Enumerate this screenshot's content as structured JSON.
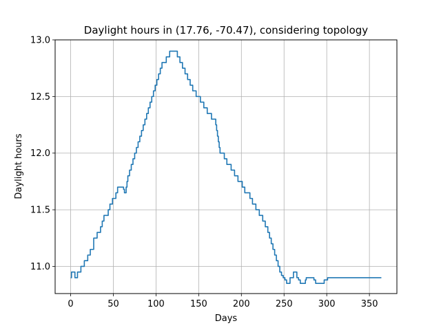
{
  "chart_data": {
    "type": "line",
    "title": "Daylight hours in (17.76, -70.47), considering topology",
    "xlabel": "Days",
    "ylabel": "Daylight hours",
    "xlim": [
      -18.2,
      382.2
    ],
    "ylim": [
      10.76,
      13.0
    ],
    "xticks": [
      0,
      50,
      100,
      150,
      200,
      250,
      300,
      350
    ],
    "yticks": [
      11.0,
      11.5,
      12.0,
      12.5,
      13.0
    ],
    "xtick_labels": [
      "0",
      "50",
      "100",
      "150",
      "200",
      "250",
      "300",
      "350"
    ],
    "ytick_labels": [
      "11.0",
      "11.5",
      "12.0",
      "12.5",
      "13.0"
    ],
    "grid": true,
    "line_color": "#1f77b4",
    "series": [
      {
        "x": [
          0,
          1,
          4,
          5,
          6,
          8,
          12,
          16,
          20,
          23,
          27,
          31,
          35,
          37,
          39,
          42,
          44,
          46,
          49,
          51,
          53,
          55,
          59,
          61,
          62,
          63,
          64,
          65,
          66,
          67,
          68,
          69,
          71,
          73,
          75,
          77,
          79,
          81,
          83,
          85,
          87,
          89,
          91,
          93,
          95,
          97,
          99,
          101,
          103,
          105,
          107,
          110,
          112,
          114,
          116,
          118,
          120,
          122,
          125,
          128,
          131,
          134,
          137,
          140,
          143,
          147,
          152,
          156,
          160,
          165,
          170,
          171,
          172,
          173,
          174,
          175,
          180,
          183,
          188,
          192,
          196,
          201,
          204,
          210,
          213,
          217,
          221,
          225,
          228,
          231,
          233,
          235,
          237,
          239,
          241,
          243,
          245,
          247,
          249,
          251,
          253,
          255,
          257,
          259,
          261,
          263,
          265,
          267,
          269,
          271,
          272,
          273,
          274,
          275,
          276,
          277,
          278,
          279,
          281,
          283,
          285,
          287,
          290,
          293,
          297,
          301,
          305,
          309,
          312,
          315,
          318,
          321,
          324,
          327,
          330,
          333,
          335,
          337,
          339,
          341,
          342,
          343,
          344,
          345,
          346,
          347,
          348,
          349,
          350,
          351,
          352,
          353,
          354,
          355,
          356,
          357,
          358,
          359,
          360,
          361,
          362,
          363,
          364
        ],
        "y": [
          10.9,
          10.95,
          10.95,
          10.9,
          10.9,
          10.95,
          11.0,
          11.05,
          11.1,
          11.15,
          11.25,
          11.3,
          11.35,
          11.4,
          11.45,
          11.45,
          11.5,
          11.55,
          11.6,
          11.6,
          11.65,
          11.7,
          11.7,
          11.7,
          11.68,
          11.65,
          11.65,
          11.7,
          11.75,
          11.8,
          11.8,
          11.85,
          11.9,
          11.95,
          12.0,
          12.05,
          12.1,
          12.15,
          12.2,
          12.25,
          12.3,
          12.35,
          12.4,
          12.45,
          12.5,
          12.55,
          12.6,
          12.65,
          12.7,
          12.75,
          12.8,
          12.8,
          12.85,
          12.85,
          12.9,
          12.9,
          12.9,
          12.9,
          12.85,
          12.8,
          12.75,
          12.7,
          12.65,
          12.6,
          12.55,
          12.5,
          12.45,
          12.4,
          12.35,
          12.3,
          12.25,
          12.2,
          12.15,
          12.1,
          12.05,
          12.0,
          11.95,
          11.9,
          11.85,
          11.8,
          11.75,
          11.7,
          11.65,
          11.6,
          11.55,
          11.5,
          11.45,
          11.4,
          11.35,
          11.3,
          11.25,
          11.2,
          11.15,
          11.1,
          11.05,
          11.0,
          10.95,
          10.92,
          10.9,
          10.88,
          10.85,
          10.85,
          10.9,
          10.9,
          10.95,
          10.95,
          10.9,
          10.88,
          10.85,
          10.85,
          10.85,
          10.85,
          10.85,
          10.88,
          10.9,
          10.9,
          10.9,
          10.9,
          10.9,
          10.9,
          10.88,
          10.85,
          10.85,
          10.85,
          10.88,
          10.9,
          10.9,
          10.9,
          10.9,
          10.9,
          10.9,
          10.9,
          10.9,
          10.9,
          10.9,
          10.9,
          10.9,
          10.9,
          10.9,
          10.9,
          10.9,
          10.9,
          10.9,
          10.9,
          10.9,
          10.9,
          10.9,
          10.9,
          10.9,
          10.9,
          10.9,
          10.9,
          10.9,
          10.9,
          10.9,
          10.9,
          10.9,
          10.9,
          10.9,
          10.9,
          10.9,
          10.9,
          10.9
        ]
      }
    ]
  }
}
